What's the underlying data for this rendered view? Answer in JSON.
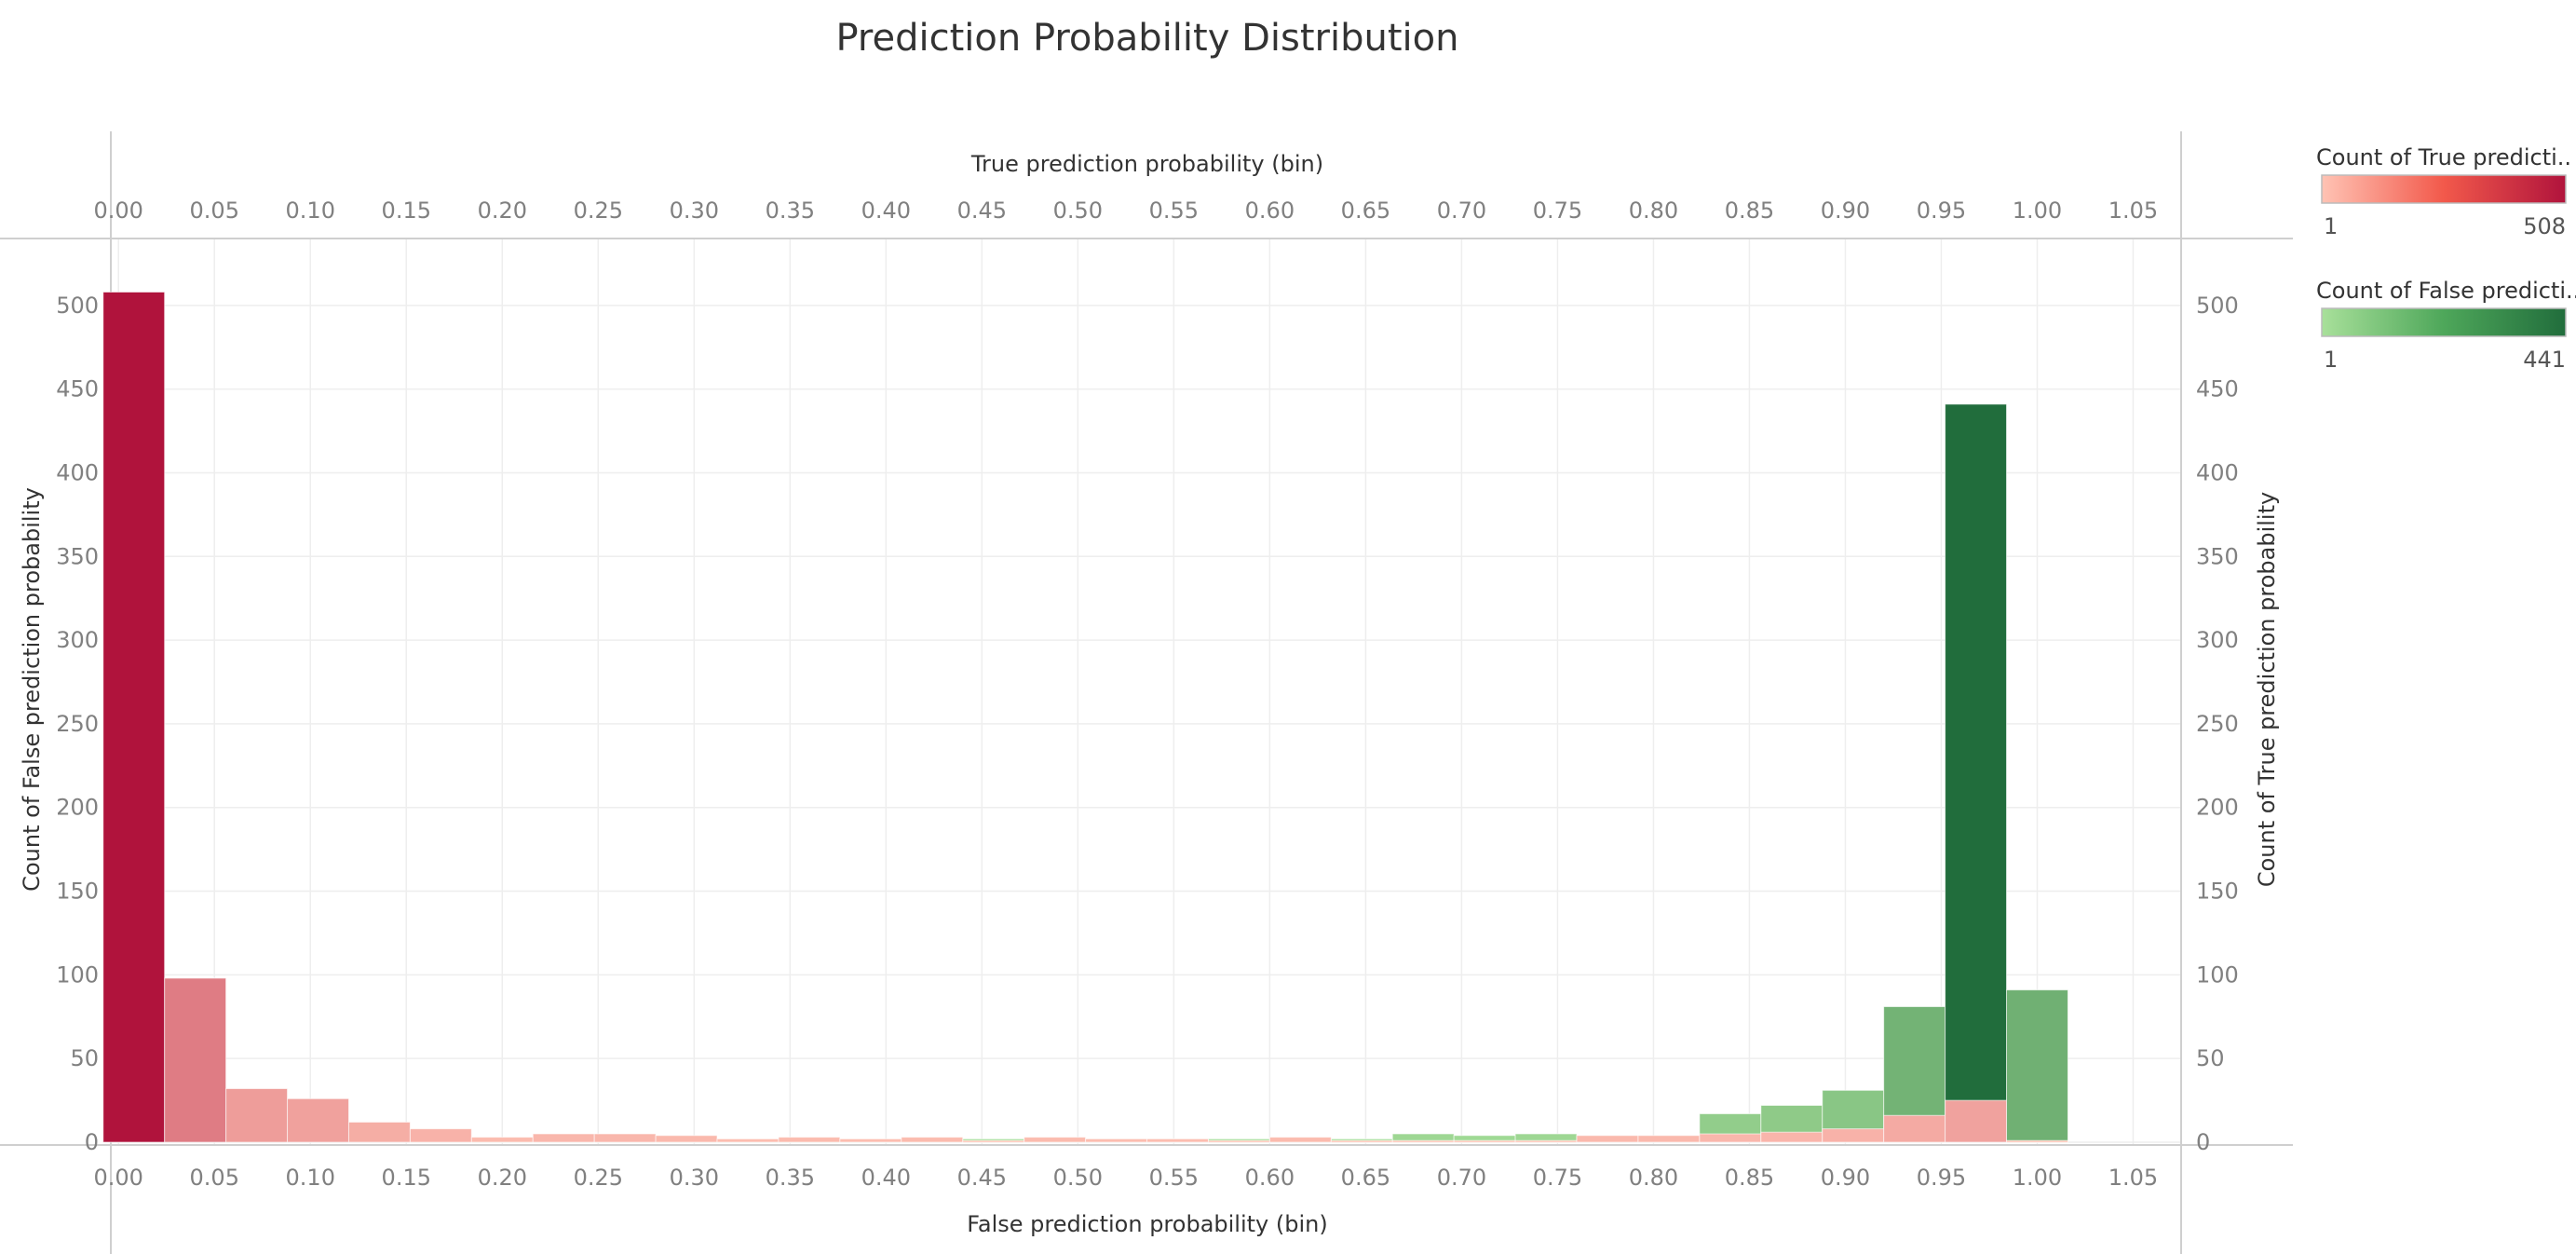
{
  "chart_data": {
    "type": "bar",
    "title": "Prediction Probability Distribution",
    "top_xlabel": "True prediction probability (bin)",
    "bottom_xlabel": "False prediction probability (bin)",
    "left_ylabel": "Count of False prediction probability",
    "right_ylabel": "Count of True prediction probability",
    "x_ticks": [
      "0.00",
      "0.05",
      "0.10",
      "0.15",
      "0.20",
      "0.25",
      "0.30",
      "0.35",
      "0.40",
      "0.45",
      "0.50",
      "0.55",
      "0.60",
      "0.65",
      "0.70",
      "0.75",
      "0.80",
      "0.85",
      "0.90",
      "0.95",
      "1.00",
      "1.05"
    ],
    "y_ticks": [
      "0",
      "50",
      "100",
      "150",
      "200",
      "250",
      "300",
      "350",
      "400",
      "450",
      "500"
    ],
    "xlim": [
      -0.004,
      1.075
    ],
    "ylim": [
      0,
      540
    ],
    "bin_width": 0.032,
    "grid": true,
    "series": [
      {
        "key": "false",
        "color_min": "#a8e09a",
        "color_max": "#216d3c",
        "bins": [
          0.008,
          0.04,
          0.072,
          0.104,
          0.136,
          0.168,
          0.2,
          0.232,
          0.264,
          0.296,
          0.328,
          0.36,
          0.392,
          0.424,
          0.456,
          0.488,
          0.52,
          0.552,
          0.584,
          0.616,
          0.648,
          0.68,
          0.712,
          0.744,
          0.776,
          0.808,
          0.84,
          0.872,
          0.904,
          0.936,
          0.968,
          1.0
        ],
        "values": [
          0,
          0,
          0,
          0,
          0,
          1,
          1,
          1,
          1,
          1,
          1,
          1,
          1,
          2,
          2,
          2,
          2,
          2,
          2,
          2,
          2,
          5,
          4,
          5,
          3,
          3,
          17,
          22,
          31,
          81,
          441,
          91
        ]
      },
      {
        "key": "true",
        "color_min": "#ffc3b4",
        "color_max": "#b0133c",
        "bins": [
          0.008,
          0.04,
          0.072,
          0.104,
          0.136,
          0.168,
          0.2,
          0.232,
          0.264,
          0.296,
          0.328,
          0.36,
          0.392,
          0.424,
          0.456,
          0.488,
          0.52,
          0.552,
          0.584,
          0.616,
          0.648,
          0.68,
          0.712,
          0.744,
          0.776,
          0.808,
          0.84,
          0.872,
          0.904,
          0.936,
          0.968,
          1.0
        ],
        "values": [
          508,
          98,
          32,
          26,
          12,
          8,
          3,
          5,
          5,
          4,
          2,
          3,
          2,
          3,
          1,
          3,
          2,
          2,
          1,
          3,
          1,
          1,
          1,
          1,
          4,
          4,
          5,
          6,
          8,
          16,
          25,
          1
        ]
      }
    ],
    "legends": [
      {
        "title": "Count of True predicti..",
        "min_label": "1",
        "max_label": "508",
        "color_min": "#ffc3b4",
        "color_mid": "#f2594b",
        "color_max": "#b0133c"
      },
      {
        "title": "Count of False predicti..",
        "min_label": "1",
        "max_label": "441",
        "color_min": "#a8e09a",
        "color_mid": "#4ea75a",
        "color_max": "#216d3c"
      }
    ]
  }
}
